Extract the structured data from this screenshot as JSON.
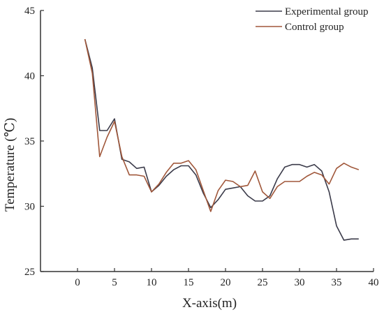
{
  "chart_data": {
    "type": "line",
    "title": "",
    "xlabel": "X-axis(m)",
    "ylabel": "Temperature (℃)",
    "xlim": [
      -5,
      40
    ],
    "ylim": [
      25,
      45
    ],
    "xticks": [
      0,
      5,
      10,
      15,
      20,
      25,
      30,
      35,
      40
    ],
    "yticks": [
      25,
      30,
      35,
      40,
      45
    ],
    "grid": false,
    "legend_position": "top-right",
    "series": [
      {
        "name": "Experimental group",
        "color": "#3b3b4a",
        "x": [
          1,
          2,
          3,
          4,
          5,
          6,
          7,
          8,
          9,
          10,
          11,
          12,
          13,
          14,
          15,
          16,
          17,
          18,
          19,
          20,
          21,
          22,
          23,
          24,
          25,
          26,
          27,
          28,
          29,
          30,
          31,
          32,
          33,
          34,
          35,
          36,
          37,
          38
        ],
        "y": [
          42.8,
          40.6,
          35.8,
          35.8,
          36.7,
          33.6,
          33.4,
          32.9,
          33.0,
          31.1,
          31.6,
          32.3,
          32.8,
          33.1,
          33.1,
          32.4,
          31.0,
          29.9,
          30.5,
          31.3,
          31.4,
          31.5,
          30.8,
          30.4,
          30.4,
          30.8,
          32.1,
          33.0,
          33.2,
          33.2,
          33.0,
          33.2,
          32.7,
          31.1,
          28.5,
          27.4,
          27.5,
          27.5
        ]
      },
      {
        "name": "Control group",
        "color": "#a0573a",
        "x": [
          1,
          2,
          3,
          4,
          5,
          6,
          7,
          8,
          9,
          10,
          11,
          12,
          13,
          14,
          15,
          16,
          17,
          18,
          19,
          20,
          21,
          22,
          23,
          24,
          25,
          26,
          27,
          28,
          29,
          30,
          31,
          32,
          33,
          34,
          35,
          36,
          37,
          38
        ],
        "y": [
          42.8,
          40.2,
          33.8,
          35.3,
          36.5,
          33.8,
          32.4,
          32.4,
          32.3,
          31.1,
          31.7,
          32.6,
          33.3,
          33.3,
          33.5,
          32.8,
          31.2,
          29.6,
          31.2,
          32.0,
          31.9,
          31.5,
          31.6,
          32.7,
          31.1,
          30.6,
          31.5,
          31.9,
          31.9,
          31.9,
          32.3,
          32.6,
          32.4,
          31.7,
          32.9,
          33.3,
          33.0,
          32.8
        ]
      }
    ]
  }
}
